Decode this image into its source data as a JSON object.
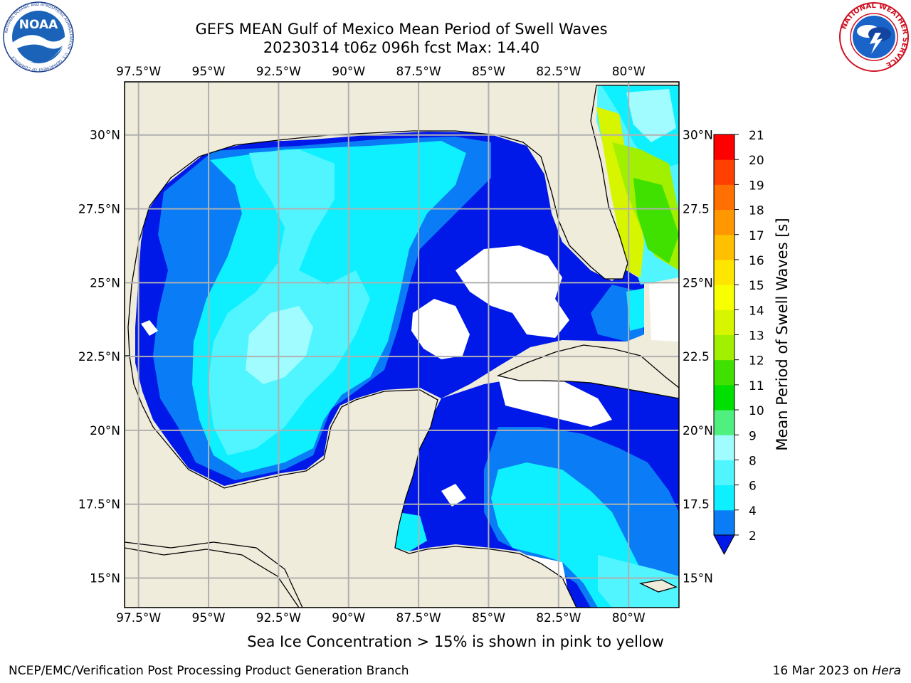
{
  "header": {
    "title_line1": "GEFS MEAN Gulf of Mexico Mean Period of Swell Waves",
    "title_line2": "20230314 t06z 096h fcst   Max: 14.40"
  },
  "logos": {
    "left": "NOAA",
    "left_ring_text": "NATIONAL OCEANIC AND ATMOSPHERIC ADMINISTRATION · U.S. DEPARTMENT OF COMMERCE",
    "right_ring_text": "NATIONAL WEATHER SERVICE"
  },
  "map": {
    "lon_labels": [
      "97.5°W",
      "95°W",
      "92.5°W",
      "90°W",
      "87.5°W",
      "85°W",
      "82.5°W",
      "80°W"
    ],
    "lat_labels_left": [
      "30°N",
      "27.5°N",
      "25°N",
      "22.5°N",
      "20°N",
      "17.5°N",
      "15°N"
    ],
    "lat_labels_right": [
      "30°N",
      "27.5",
      "25°N",
      "22.5",
      "20°N",
      "17.5",
      "15°N"
    ],
    "lon_values": [
      -97.5,
      -95,
      -92.5,
      -90,
      -87.5,
      -85,
      -82.5,
      -80
    ],
    "lat_values": [
      30,
      27.5,
      25,
      22.5,
      20,
      17.5,
      15
    ],
    "extent": {
      "lon_min": -98,
      "lon_max": -78.2,
      "lat_min": 14,
      "lat_max": 31.8
    },
    "colors": {
      "land": "#efecdc",
      "grid": "#b0b0b0",
      "no_data": "#ffffff"
    }
  },
  "colorbar": {
    "label": "Mean Period of Swell Waves [s]",
    "ticks": [
      "2",
      "4",
      "6",
      "8",
      "9",
      "10",
      "11",
      "12",
      "13",
      "14",
      "15",
      "16",
      "17",
      "18",
      "19",
      "20",
      "21"
    ],
    "bins": [
      {
        "from": 2,
        "to": 4,
        "color": "#0a7cf5"
      },
      {
        "from": 4,
        "to": 6,
        "color": "#0ef0ff"
      },
      {
        "from": 6,
        "to": 8,
        "color": "#50f5ff"
      },
      {
        "from": 8,
        "to": 9,
        "color": "#a0fcff"
      },
      {
        "from": 9,
        "to": 10,
        "color": "#50f080"
      },
      {
        "from": 10,
        "to": 11,
        "color": "#00e000"
      },
      {
        "from": 11,
        "to": 12,
        "color": "#40e000"
      },
      {
        "from": 12,
        "to": 13,
        "color": "#a0f000"
      },
      {
        "from": 13,
        "to": 14,
        "color": "#d8f500"
      },
      {
        "from": 14,
        "to": 15,
        "color": "#f8ff00"
      },
      {
        "from": 15,
        "to": 16,
        "color": "#ffe600"
      },
      {
        "from": 16,
        "to": 17,
        "color": "#ffc000"
      },
      {
        "from": 17,
        "to": 18,
        "color": "#ff9800"
      },
      {
        "from": 18,
        "to": 19,
        "color": "#ff7000"
      },
      {
        "from": 19,
        "to": 20,
        "color": "#ff4000"
      },
      {
        "from": 20,
        "to": 21,
        "color": "#ff0000"
      }
    ],
    "under_color": "#0018e8"
  },
  "caption": "Sea Ice Concentration > 15% is shown in pink to yellow",
  "footer": {
    "left": "NCEP/EMC/Verification Post Processing Product Generation Branch",
    "right_date": "16 Mar 2023 on ",
    "right_host": "Hera"
  }
}
